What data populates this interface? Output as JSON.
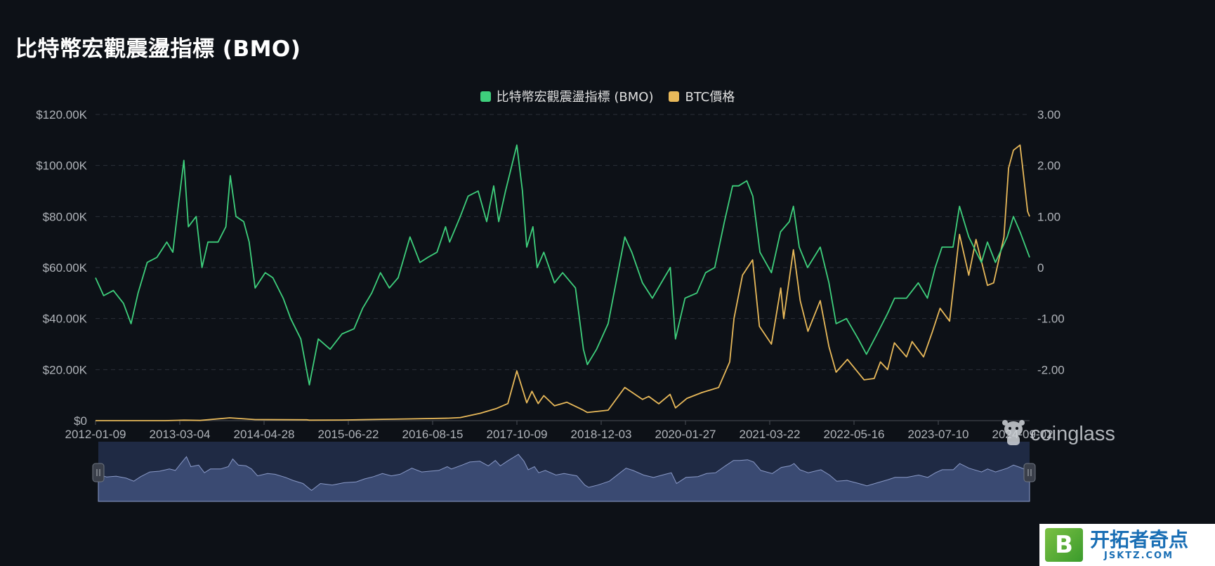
{
  "title": "比特幣宏觀震盪指標 (BMO)",
  "legend": [
    {
      "label": "比特幣宏觀震盪指標 (BMO)",
      "color": "#3ecf7c"
    },
    {
      "label": "BTC價格",
      "color": "#e8b95a"
    }
  ],
  "watermark": {
    "text": "coinglass",
    "icon": "coinglass-mascot-icon"
  },
  "corner_logo": {
    "badge": "B",
    "name_cn": "开拓者奇点",
    "site": "JSKTZ.COM"
  },
  "chart_data": {
    "type": "line",
    "title": "比特幣宏觀震盪指標 (BMO)",
    "grid": "horizontal-dashed",
    "legend_position": "top-center",
    "x_tick_labels": [
      "2012-01-09",
      "2013-03-04",
      "2014-04-28",
      "2015-06-22",
      "2016-08-15",
      "2017-10-09",
      "2018-12-03",
      "2020-01-27",
      "2021-03-22",
      "2022-05-16",
      "2023-07-10",
      "2024-09-02"
    ],
    "x_range": [
      "2012-01-09",
      "2025-03-10"
    ],
    "y_left": {
      "ticks": [
        "$0",
        "$20.00K",
        "$40.00K",
        "$60.00K",
        "$80.00K",
        "$100.00K",
        "$120.00K"
      ],
      "range": [
        0,
        120000
      ]
    },
    "y_right": {
      "ticks": [
        "-2.00",
        "-1.00",
        "0",
        "1.00",
        "2.00",
        "3.00"
      ],
      "range": [
        -3,
        3
      ]
    },
    "series": [
      {
        "name": "比特幣宏觀震盪指標 (BMO)",
        "axis": "right",
        "color": "#3ecf7c",
        "points": [
          [
            "2012-01-09",
            -0.2
          ],
          [
            "2012-02-20",
            -0.55
          ],
          [
            "2012-04-10",
            -0.45
          ],
          [
            "2012-06-01",
            -0.7
          ],
          [
            "2012-07-10",
            -1.1
          ],
          [
            "2012-08-15",
            -0.5
          ],
          [
            "2012-10-01",
            0.1
          ],
          [
            "2012-11-20",
            0.2
          ],
          [
            "2013-01-10",
            0.5
          ],
          [
            "2013-02-10",
            0.3
          ],
          [
            "2013-03-10",
            1.2
          ],
          [
            "2013-04-08",
            2.1
          ],
          [
            "2013-05-01",
            0.8
          ],
          [
            "2013-06-10",
            1.0
          ],
          [
            "2013-07-10",
            0
          ],
          [
            "2013-08-10",
            0.5
          ],
          [
            "2013-10-01",
            0.5
          ],
          [
            "2013-11-10",
            0.8
          ],
          [
            "2013-12-03",
            1.8
          ],
          [
            "2014-01-01",
            1.0
          ],
          [
            "2014-02-10",
            0.9
          ],
          [
            "2014-03-10",
            0.5
          ],
          [
            "2014-04-10",
            -0.4
          ],
          [
            "2014-06-01",
            -0.1
          ],
          [
            "2014-07-10",
            -0.2
          ],
          [
            "2014-09-01",
            -0.6
          ],
          [
            "2014-10-10",
            -1.0
          ],
          [
            "2014-12-01",
            -1.4
          ],
          [
            "2015-01-14",
            -2.3
          ],
          [
            "2015-03-01",
            -1.4
          ],
          [
            "2015-05-01",
            -1.6
          ],
          [
            "2015-07-01",
            -1.3
          ],
          [
            "2015-09-01",
            -1.2
          ],
          [
            "2015-10-15",
            -0.8
          ],
          [
            "2015-12-01",
            -0.5
          ],
          [
            "2016-01-15",
            -0.1
          ],
          [
            "2016-03-01",
            -0.4
          ],
          [
            "2016-04-15",
            -0.2
          ],
          [
            "2016-06-15",
            0.6
          ],
          [
            "2016-08-05",
            0.1
          ],
          [
            "2016-09-15",
            0.2
          ],
          [
            "2016-11-01",
            0.3
          ],
          [
            "2016-12-15",
            0.8
          ],
          [
            "2017-01-05",
            0.5
          ],
          [
            "2017-03-01",
            1.0
          ],
          [
            "2017-04-10",
            1.4
          ],
          [
            "2017-06-01",
            1.5
          ],
          [
            "2017-07-15",
            0.9
          ],
          [
            "2017-08-20",
            1.6
          ],
          [
            "2017-09-15",
            0.9
          ],
          [
            "2017-10-20",
            1.5
          ],
          [
            "2017-12-17",
            2.4
          ],
          [
            "2018-01-15",
            1.5
          ],
          [
            "2018-02-06",
            0.4
          ],
          [
            "2018-03-10",
            0.8
          ],
          [
            "2018-04-01",
            0
          ],
          [
            "2018-05-05",
            0.3
          ],
          [
            "2018-06-29",
            -0.3
          ],
          [
            "2018-08-10",
            -0.1
          ],
          [
            "2018-10-15",
            -0.4
          ],
          [
            "2018-11-25",
            -1.6
          ],
          [
            "2018-12-15",
            -1.9
          ],
          [
            "2019-02-01",
            -1.6
          ],
          [
            "2019-04-01",
            -1.1
          ],
          [
            "2019-06-26",
            0.6
          ],
          [
            "2019-08-01",
            0.3
          ],
          [
            "2019-09-25",
            -0.3
          ],
          [
            "2019-11-15",
            -0.6
          ],
          [
            "2020-01-15",
            -0.2
          ],
          [
            "2020-02-15",
            0
          ],
          [
            "2020-03-13",
            -1.4
          ],
          [
            "2020-05-01",
            -0.6
          ],
          [
            "2020-07-01",
            -0.5
          ],
          [
            "2020-08-15",
            -0.1
          ],
          [
            "2020-10-01",
            0
          ],
          [
            "2020-11-20",
            0.9
          ],
          [
            "2021-01-01",
            1.6
          ],
          [
            "2021-02-01",
            1.6
          ],
          [
            "2021-03-15",
            1.7
          ],
          [
            "2021-04-15",
            1.4
          ],
          [
            "2021-05-22",
            0.3
          ],
          [
            "2021-07-20",
            -0.1
          ],
          [
            "2021-09-05",
            0.7
          ],
          [
            "2021-10-20",
            0.9
          ],
          [
            "2021-11-10",
            1.2
          ],
          [
            "2021-12-10",
            0.4
          ],
          [
            "2022-01-22",
            0
          ],
          [
            "2022-03-28",
            0.4
          ],
          [
            "2022-05-12",
            -0.3
          ],
          [
            "2022-06-18",
            -1.1
          ],
          [
            "2022-08-10",
            -1.0
          ],
          [
            "2022-10-10",
            -1.4
          ],
          [
            "2022-11-21",
            -1.7
          ],
          [
            "2023-01-15",
            -1.3
          ],
          [
            "2023-03-10",
            -0.9
          ],
          [
            "2023-04-15",
            -0.6
          ],
          [
            "2023-06-15",
            -0.6
          ],
          [
            "2023-08-15",
            -0.3
          ],
          [
            "2023-10-01",
            -0.6
          ],
          [
            "2023-11-10",
            0
          ],
          [
            "2023-12-15",
            0.4
          ],
          [
            "2024-02-10",
            0.4
          ],
          [
            "2024-03-14",
            1.2
          ],
          [
            "2024-05-01",
            0.6
          ],
          [
            "2024-07-05",
            0.1
          ],
          [
            "2024-08-05",
            0.5
          ],
          [
            "2024-09-15",
            0.1
          ],
          [
            "2024-11-15",
            0.6
          ],
          [
            "2024-12-17",
            1.0
          ],
          [
            "2025-01-20",
            0.7
          ],
          [
            "2025-03-10",
            0.2
          ]
        ]
      },
      {
        "name": "BTC價格",
        "axis": "left",
        "color": "#e8b95a",
        "points": [
          [
            "2012-01-09",
            6
          ],
          [
            "2012-12-31",
            13
          ],
          [
            "2013-04-09",
            200
          ],
          [
            "2013-07-01",
            90
          ],
          [
            "2013-11-30",
            1100
          ],
          [
            "2014-04-10",
            400
          ],
          [
            "2014-12-31",
            320
          ],
          [
            "2015-01-14",
            180
          ],
          [
            "2015-07-01",
            260
          ],
          [
            "2015-11-04",
            400
          ],
          [
            "2016-06-18",
            700
          ],
          [
            "2016-12-31",
            960
          ],
          [
            "2017-03-01",
            1200
          ],
          [
            "2017-06-12",
            2900
          ],
          [
            "2017-09-01",
            4700
          ],
          [
            "2017-11-01",
            6700
          ],
          [
            "2017-12-17",
            19500
          ],
          [
            "2018-02-06",
            7000
          ],
          [
            "2018-03-05",
            11500
          ],
          [
            "2018-04-06",
            6700
          ],
          [
            "2018-05-05",
            9800
          ],
          [
            "2018-06-29",
            5800
          ],
          [
            "2018-09-01",
            7200
          ],
          [
            "2018-11-20",
            4300
          ],
          [
            "2018-12-15",
            3200
          ],
          [
            "2019-04-01",
            4100
          ],
          [
            "2019-06-26",
            13000
          ],
          [
            "2019-09-25",
            8300
          ],
          [
            "2019-10-27",
            9500
          ],
          [
            "2019-12-18",
            6600
          ],
          [
            "2020-02-14",
            10300
          ],
          [
            "2020-03-13",
            5000
          ],
          [
            "2020-05-10",
            8700
          ],
          [
            "2020-07-27",
            11000
          ],
          [
            "2020-10-21",
            13000
          ],
          [
            "2020-12-17",
            23000
          ],
          [
            "2021-01-08",
            40000
          ],
          [
            "2021-02-21",
            57000
          ],
          [
            "2021-04-14",
            63000
          ],
          [
            "2021-05-19",
            37000
          ],
          [
            "2021-07-20",
            30000
          ],
          [
            "2021-09-06",
            52000
          ],
          [
            "2021-09-21",
            40000
          ],
          [
            "2021-11-10",
            67000
          ],
          [
            "2021-12-15",
            47000
          ],
          [
            "2022-01-24",
            35000
          ],
          [
            "2022-03-28",
            47000
          ],
          [
            "2022-05-12",
            29000
          ],
          [
            "2022-06-18",
            19000
          ],
          [
            "2022-08-15",
            24000
          ],
          [
            "2022-11-09",
            16000
          ],
          [
            "2022-12-31",
            16500
          ],
          [
            "2023-02-01",
            23000
          ],
          [
            "2023-03-10",
            20000
          ],
          [
            "2023-04-14",
            30500
          ],
          [
            "2023-06-15",
            25000
          ],
          [
            "2023-07-14",
            31000
          ],
          [
            "2023-09-11",
            25000
          ],
          [
            "2023-10-25",
            34500
          ],
          [
            "2023-12-05",
            44000
          ],
          [
            "2024-01-23",
            39000
          ],
          [
            "2024-03-14",
            73000
          ],
          [
            "2024-05-01",
            57000
          ],
          [
            "2024-06-07",
            71000
          ],
          [
            "2024-08-05",
            53000
          ],
          [
            "2024-09-06",
            54000
          ],
          [
            "2024-10-29",
            72000
          ],
          [
            "2024-11-22",
            99000
          ],
          [
            "2024-12-17",
            106000
          ],
          [
            "2025-01-20",
            108000
          ],
          [
            "2025-02-01",
            100000
          ],
          [
            "2025-02-28",
            82000
          ],
          [
            "2025-03-10",
            80000
          ]
        ]
      }
    ]
  }
}
